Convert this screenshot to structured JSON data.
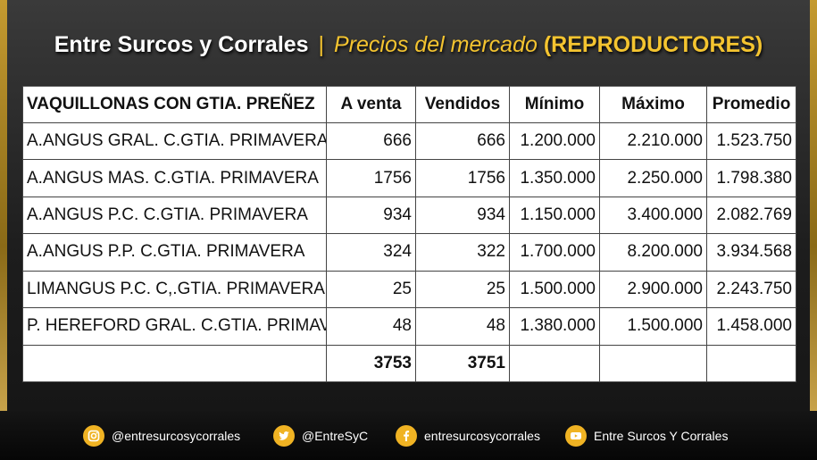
{
  "header": {
    "brand": "Entre Surcos y Corrales",
    "separator": "|",
    "subtitle": "Precios del mercado",
    "tag": "(REPRODUCTORES)"
  },
  "table": {
    "columns": [
      "VAQUILLONAS CON GTIA. PREÑEZ",
      "A venta",
      "Vendidos",
      "Mínimo",
      "Máximo",
      "Promedio"
    ],
    "rows": [
      [
        "A.ANGUS GRAL. C.GTIA. PRIMAVERA",
        "666",
        "666",
        "1.200.000",
        "2.210.000",
        "1.523.750"
      ],
      [
        "A.ANGUS MAS. C.GTIA. PRIMAVERA",
        "1756",
        "1756",
        "1.350.000",
        "2.250.000",
        "1.798.380"
      ],
      [
        "A.ANGUS P.C. C.GTIA. PRIMAVERA",
        "934",
        "934",
        "1.150.000",
        "3.400.000",
        "2.082.769"
      ],
      [
        "A.ANGUS P.P. C.GTIA. PRIMAVERA",
        "324",
        "322",
        "1.700.000",
        "8.200.000",
        "3.934.568"
      ],
      [
        "LIMANGUS P.C. C,.GTIA. PRIMAVERA",
        "25",
        "25",
        "1.500.000",
        "2.900.000",
        "2.243.750"
      ],
      [
        "P. HEREFORD GRAL. C.GTIA. PRIMAV.",
        "48",
        "48",
        "1.380.000",
        "1.500.000",
        "1.458.000"
      ]
    ],
    "totals": [
      "",
      "3753",
      "3751",
      "",
      "",
      ""
    ]
  },
  "footer": {
    "items": [
      {
        "icon": "instagram-icon",
        "label": "@entresurcosycorrales"
      },
      {
        "icon": "twitter-icon",
        "label": "@EntreSyC"
      },
      {
        "icon": "facebook-icon",
        "label": "entresurcosycorrales"
      },
      {
        "icon": "youtube-icon",
        "label": "Entre Surcos Y Corrales"
      }
    ]
  },
  "colors": {
    "accent": "#f0b323",
    "frame": "#c49a30",
    "background": "#1d1d1d"
  }
}
